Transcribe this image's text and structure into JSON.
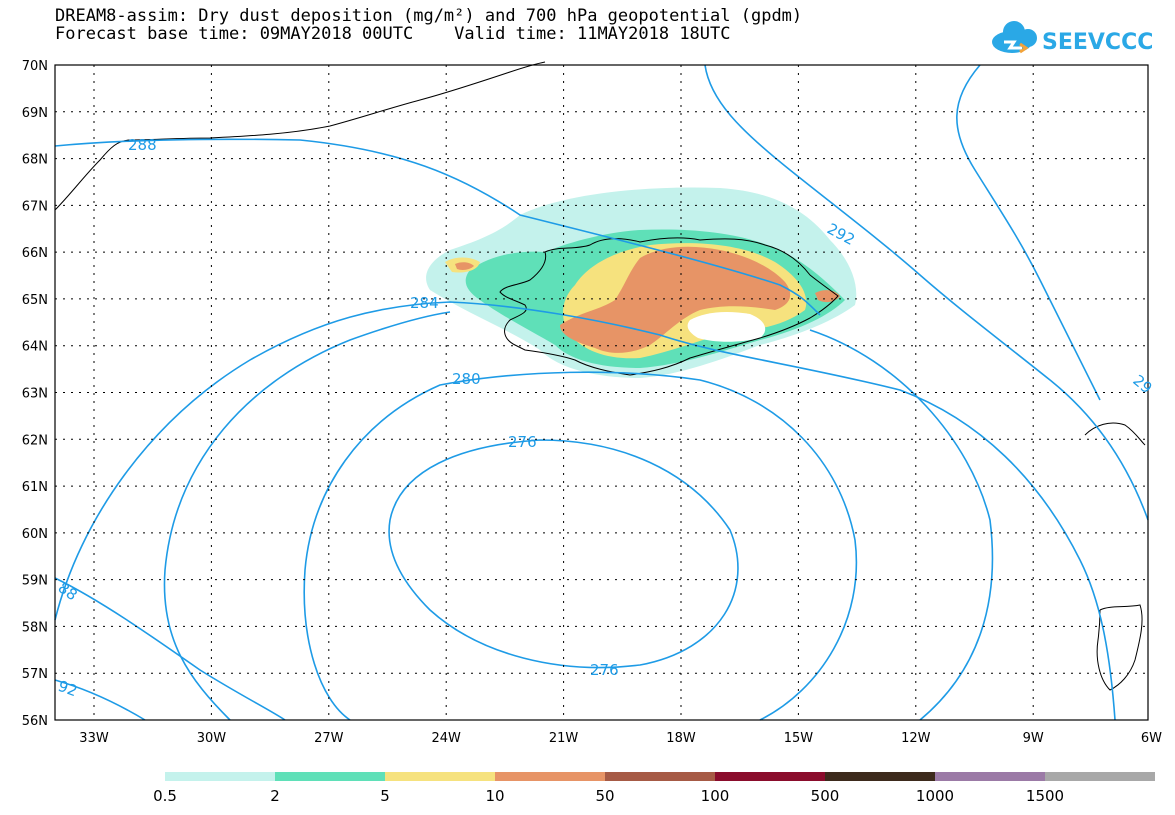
{
  "title_line1": "DREAM8-assim: Dry dust deposition (mg/m²) and 700 hPa geopotential (gpdm)",
  "title_line2": "Forecast base time: 09MAY2018 00UTC    Valid time: 11MAY2018 18UTC",
  "logo_text": "SEEVCCC",
  "lat_labels": [
    "70N",
    "69N",
    "68N",
    "67N",
    "66N",
    "65N",
    "64N",
    "63N",
    "62N",
    "61N",
    "60N",
    "59N",
    "58N",
    "57N",
    "56N"
  ],
  "lon_labels": [
    "33W",
    "30W",
    "27W",
    "24W",
    "21W",
    "18W",
    "15W",
    "12W",
    "9W",
    "6W"
  ],
  "contour_labels": [
    "288",
    "292",
    "284",
    "280",
    "276",
    "276",
    "88",
    "92",
    "29"
  ],
  "colorbar": {
    "colors": [
      "#c4f2ec",
      "#5fe0b8",
      "#f6e27e",
      "#e79466",
      "#a65a45",
      "#8a0c2c",
      "#3d2a1c",
      "#9b7aa6",
      "#a8a8a8"
    ],
    "labels": [
      "0.5",
      "2",
      "5",
      "10",
      "50",
      "100",
      "500",
      "1000",
      "1500"
    ]
  },
  "colors": {
    "contour": "#1e9be6",
    "coast": "#000000"
  }
}
